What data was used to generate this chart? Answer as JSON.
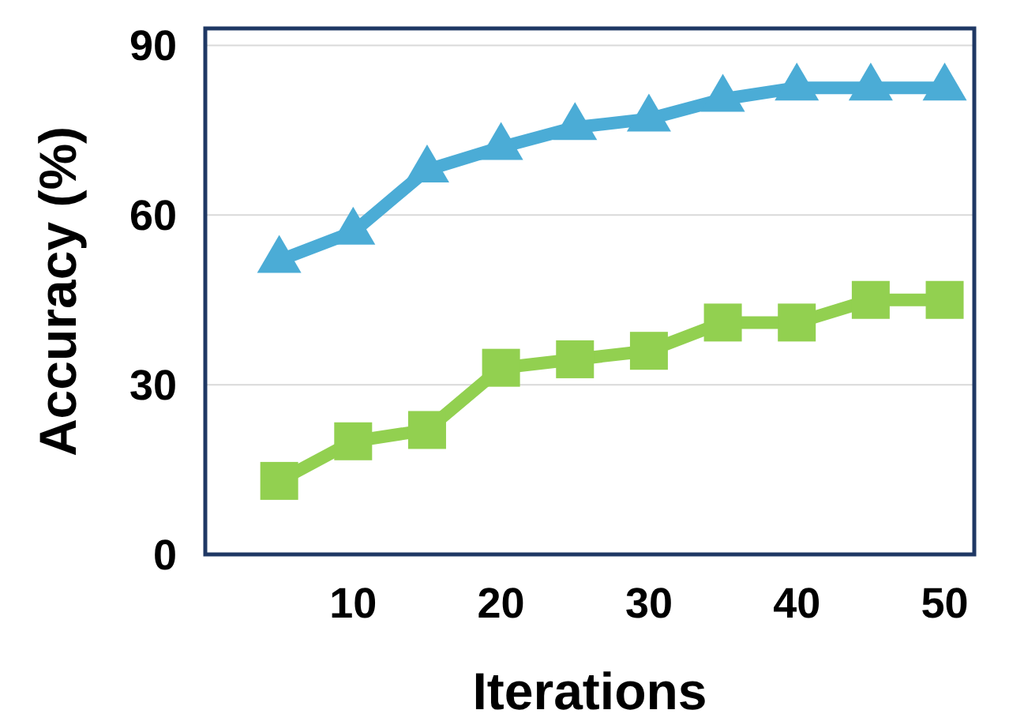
{
  "chart_data": {
    "type": "line",
    "xlabel": "Iterations",
    "ylabel": "Accuracy (%)",
    "x": [
      5,
      10,
      15,
      20,
      25,
      30,
      35,
      40,
      45,
      50
    ],
    "xlim": [
      0,
      52
    ],
    "xticks": [
      10,
      20,
      30,
      40,
      50
    ],
    "ylim": [
      0,
      93
    ],
    "yticks": [
      0,
      30,
      60,
      90
    ],
    "grid": "y",
    "line_style": "solid",
    "series": [
      {
        "color": "#4bacd6",
        "marker": "triangle",
        "values": [
          52,
          57,
          68,
          72,
          75.5,
          77,
          80.5,
          82.5,
          82.5,
          82.5
        ]
      },
      {
        "color": "#92d050",
        "marker": "square",
        "values": [
          13,
          20,
          22,
          33,
          34.5,
          36,
          41,
          41,
          45,
          45
        ]
      }
    ]
  }
}
